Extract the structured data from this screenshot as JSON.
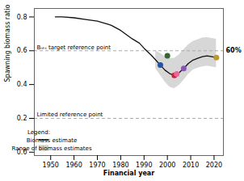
{
  "chart_data": {
    "type": "line",
    "xlabel": "Financial year",
    "ylabel": "Spawning biomass ratio",
    "xlim": [
      1943,
      2024
    ],
    "ylim": [
      -0.02,
      0.85
    ],
    "xticks": [
      1950,
      1960,
      1970,
      1980,
      1990,
      2000,
      2010,
      2020
    ],
    "yticks": [
      {
        "value": 0.0,
        "label": "0.0"
      },
      0.2,
      0.4,
      0.6,
      0.8
    ],
    "series": [
      {
        "name": "Biomass estimate",
        "type": "line",
        "color": "#111111",
        "x": [
          1952,
          1955,
          1960,
          1965,
          1970,
          1975,
          1976,
          1980,
          1985,
          1988,
          1990,
          1993,
          1995,
          1997,
          1999,
          2001,
          2003,
          2004,
          2005,
          2007,
          2009,
          2011,
          2013,
          2015,
          2017,
          2019,
          2021
        ],
        "values": [
          0.8,
          0.8,
          0.795,
          0.785,
          0.775,
          0.755,
          0.75,
          0.72,
          0.67,
          0.645,
          0.615,
          0.575,
          0.545,
          0.515,
          0.485,
          0.465,
          0.455,
          0.46,
          0.47,
          0.495,
          0.525,
          0.545,
          0.555,
          0.565,
          0.57,
          0.565,
          0.56
        ]
      },
      {
        "name": "Range of biomass estimates",
        "type": "area",
        "color": "#d0d0d0",
        "x": [
          1995,
          1997,
          1999,
          2001,
          2003,
          2004,
          2005,
          2007,
          2009,
          2011,
          2013,
          2015,
          2017,
          2019,
          2021
        ],
        "lower": [
          0.495,
          0.455,
          0.415,
          0.385,
          0.375,
          0.385,
          0.395,
          0.425,
          0.46,
          0.485,
          0.498,
          0.505,
          0.51,
          0.505,
          0.5
        ],
        "upper": [
          0.6,
          0.585,
          0.565,
          0.555,
          0.555,
          0.565,
          0.575,
          0.605,
          0.635,
          0.655,
          0.665,
          0.675,
          0.678,
          0.673,
          0.668
        ]
      }
    ],
    "points": {
      "x": [
        1997,
        2000,
        2003,
        2004,
        2007,
        2021
      ],
      "values": [
        0.515,
        0.57,
        0.455,
        0.463,
        0.495,
        0.56
      ],
      "colors": [
        "#2255aa",
        "#336633",
        "#cc2233",
        "#ee6699",
        "#8855bb",
        "#bb9933"
      ]
    },
    "reference_lines": [
      {
        "value": 0.6,
        "label": "Bₙₜₛ target reference point",
        "color": "#aaaaaa",
        "line_style": "dashed"
      },
      {
        "value": 0.2,
        "label": "Limited reference point",
        "color": "#aaaaaa",
        "line_style": "dashed"
      }
    ],
    "annotations": [
      {
        "text": "60%",
        "y": 0.6
      }
    ],
    "legend": "lower left",
    "legend_title": "Legend:",
    "grid": false
  }
}
